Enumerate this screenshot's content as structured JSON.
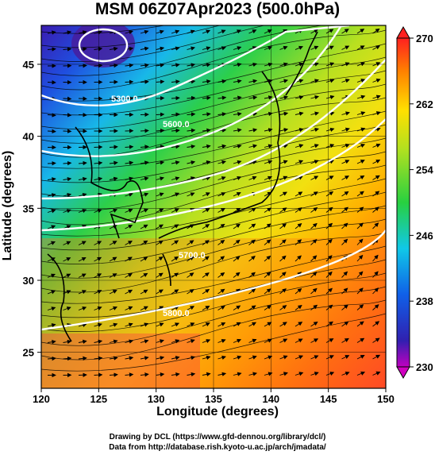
{
  "title": "MSM 06Z07Apr2023 (500.0hPa)",
  "xaxis": {
    "label": "Longitude (degrees)",
    "ticks": [
      "120",
      "125",
      "130",
      "135",
      "140",
      "145",
      "150"
    ],
    "range": [
      120,
      150
    ]
  },
  "yaxis": {
    "label": "Latitude  (degrees)",
    "ticks": [
      "25",
      "30",
      "35",
      "40",
      "45"
    ],
    "range": [
      22.5,
      47.7
    ]
  },
  "colorbar": {
    "ticks": [
      "270",
      "262",
      "254",
      "246",
      "238",
      "230"
    ],
    "range": [
      230,
      270
    ],
    "unit_hint": "temperature (K)"
  },
  "contours": {
    "labels": [
      "5300.0",
      "5600.0",
      "5700.0",
      "5800.0"
    ]
  },
  "credits": {
    "line1": "Drawing by DCL (https://www.gfd-dennou.org/library/dcl/)",
    "line2": "Data from http://database.rish.kyoto-u.ac.jp/arch/jmadata/"
  },
  "colors": {
    "cold": "#4b1fb0",
    "mid": "#22c83c",
    "warm": "#ff3a1a",
    "contour": "#ffffff",
    "coast": "#000000"
  }
}
